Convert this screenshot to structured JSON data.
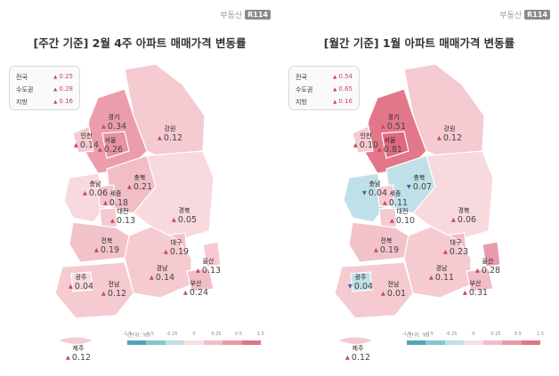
{
  "brand": {
    "text": "부동산",
    "badge": "R114"
  },
  "scale_colors": [
    "#4fa7b5",
    "#86c6d0",
    "#bfe0e8",
    "#f7dfe3",
    "#f2bdc6",
    "#e99aa8",
    "#df7587"
  ],
  "panels": [
    {
      "title": "[주간 기준] 2월 4주 아파트 매매가격 변동률",
      "summary": [
        {
          "name": "전국",
          "value": "0.25"
        },
        {
          "name": "수도권",
          "value": "0.28"
        },
        {
          "name": "지방",
          "value": "0.16"
        }
      ],
      "regions": {
        "incheon": {
          "name": "인천",
          "value": "0.14",
          "dir": "up"
        },
        "gyeonggi": {
          "name": "경기",
          "value": "0.34",
          "dir": "up"
        },
        "seoul": {
          "name": "서울",
          "value": "0.26",
          "dir": "up"
        },
        "gangwon": {
          "name": "강원",
          "value": "0.12",
          "dir": "up"
        },
        "chungnam": {
          "name": "충남",
          "value": "0.06",
          "dir": "up"
        },
        "chungbuk": {
          "name": "충북",
          "value": "0.21",
          "dir": "up"
        },
        "sejong": {
          "name": "세종",
          "value": "0.18",
          "dir": "up"
        },
        "daejeon": {
          "name": "대전",
          "value": "0.13",
          "dir": "up"
        },
        "gyeongbuk": {
          "name": "경북",
          "value": "0.05",
          "dir": "up"
        },
        "jeonbuk": {
          "name": "전북",
          "value": "0.19",
          "dir": "up"
        },
        "daegu": {
          "name": "대구",
          "value": "0.19",
          "dir": "up"
        },
        "ulsan": {
          "name": "울산",
          "value": "0.13",
          "dir": "up"
        },
        "gwangju": {
          "name": "광주",
          "value": "0.04",
          "dir": "up"
        },
        "jeonnam": {
          "name": "전남",
          "value": "0.12",
          "dir": "up"
        },
        "gyeongnam": {
          "name": "경남",
          "value": "0.14",
          "dir": "up"
        },
        "busan": {
          "name": "부산",
          "value": "0.24",
          "dir": "up"
        },
        "jeju": {
          "name": "제주",
          "value": "0.12",
          "dir": "up"
        }
      },
      "scale": {
        "unit": "(단위: %)",
        "ticks": [
          "-1.5",
          "-0.5",
          "-0.25",
          "0",
          "0.25",
          "0.5",
          "1.5"
        ]
      }
    },
    {
      "title": "[월간 기준] 1월 아파트 매매가격 변동률",
      "summary": [
        {
          "name": "전국",
          "value": "0.54"
        },
        {
          "name": "수도권",
          "value": "0.65"
        },
        {
          "name": "지방",
          "value": "0.16"
        }
      ],
      "regions": {
        "incheon": {
          "name": "인천",
          "value": "0.10",
          "dir": "up"
        },
        "gyeonggi": {
          "name": "경기",
          "value": "0.51",
          "dir": "up"
        },
        "seoul": {
          "name": "서울",
          "value": "0.81",
          "dir": "up"
        },
        "gangwon": {
          "name": "강원",
          "value": "0.12",
          "dir": "up"
        },
        "chungnam": {
          "name": "충남",
          "value": "0.04",
          "dir": "down"
        },
        "chungbuk": {
          "name": "충북",
          "value": "0.07",
          "dir": "down"
        },
        "sejong": {
          "name": "세종",
          "value": "0.11",
          "dir": "up"
        },
        "daejeon": {
          "name": "대전",
          "value": "0.10",
          "dir": "up"
        },
        "gyeongbuk": {
          "name": "경북",
          "value": "0.06",
          "dir": "up"
        },
        "jeonbuk": {
          "name": "전북",
          "value": "0.19",
          "dir": "up"
        },
        "daegu": {
          "name": "대구",
          "value": "0.23",
          "dir": "up"
        },
        "ulsan": {
          "name": "울산",
          "value": "0.28",
          "dir": "up"
        },
        "gwangju": {
          "name": "광주",
          "value": "0.04",
          "dir": "down"
        },
        "jeonnam": {
          "name": "전남",
          "value": "0.01",
          "dir": "up"
        },
        "gyeongnam": {
          "name": "경남",
          "value": "0.11",
          "dir": "up"
        },
        "busan": {
          "name": "부산",
          "value": "0.31",
          "dir": "up"
        },
        "jeju": {
          "name": "제주",
          "value": "0.12",
          "dir": "up"
        }
      },
      "scale": {
        "unit": "(단위: %)",
        "ticks": [
          "-1.5",
          "-0.5",
          "-0.25",
          "0",
          "0.25",
          "0.5",
          "1.5"
        ]
      }
    }
  ]
}
